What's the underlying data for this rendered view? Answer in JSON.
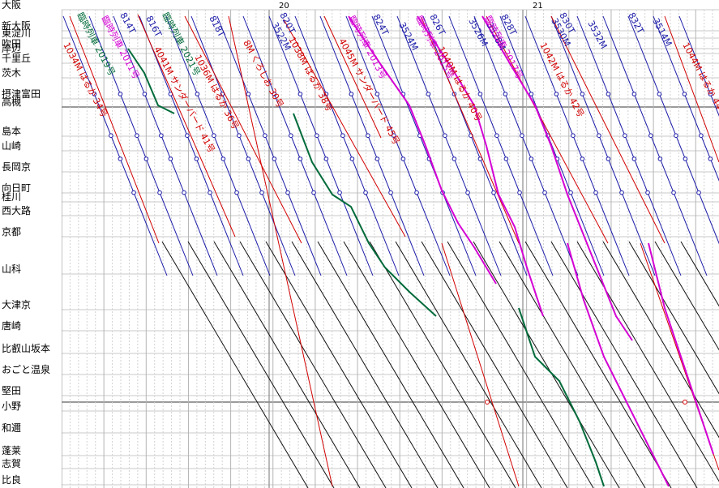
{
  "origin_station": "大阪",
  "hour_labels": [
    {
      "label": "20"
    },
    {
      "label": "21"
    }
  ],
  "stations": [
    {
      "name": "新大阪"
    },
    {
      "name": "東淀川"
    },
    {
      "name": "吹田"
    },
    {
      "name": "岸辺"
    },
    {
      "name": "千里丘"
    },
    {
      "name": "茨木"
    },
    {
      "name": "摂津富田"
    },
    {
      "name": "高槻"
    },
    {
      "name": "島本"
    },
    {
      "name": "山崎"
    },
    {
      "name": "長岡京"
    },
    {
      "name": "向日町"
    },
    {
      "name": "桂川"
    },
    {
      "name": "西大路"
    },
    {
      "name": "京都"
    },
    {
      "name": "山科"
    },
    {
      "name": "大津京"
    },
    {
      "name": "唐崎"
    },
    {
      "name": "比叡山坂本"
    },
    {
      "name": "おごと温泉"
    },
    {
      "name": "堅田"
    },
    {
      "name": "小野"
    },
    {
      "name": "和邇"
    },
    {
      "name": "蓬莱"
    },
    {
      "name": "志賀"
    },
    {
      "name": "比良"
    }
  ],
  "trains": [
    {
      "label": "1034M はるか 34号",
      "color": "#d20000"
    },
    {
      "label": "4041M サンダーバード 41号",
      "color": "#d20000"
    },
    {
      "label": "1036M はるか 36号",
      "color": "#d20000"
    },
    {
      "label": "8M くろしお 30号",
      "color": "#d20000"
    },
    {
      "label": "1038M はるか 38号",
      "color": "#d20000"
    },
    {
      "label": "4045M サンダーバード 45号",
      "color": "#d20000"
    },
    {
      "label": "1040M はるか 40号",
      "color": "#d20000"
    },
    {
      "label": "1042M はるか 42号",
      "color": "#d20000"
    },
    {
      "label": "1044M はるか 44号",
      "color": "#d20000"
    },
    {
      "label": "820T",
      "color": "#1a1aa8"
    },
    {
      "label": "3522M",
      "color": "#1a1aa8"
    },
    {
      "label": "3524M",
      "color": "#1a1aa8"
    },
    {
      "label": "3526M",
      "color": "#1a1aa8"
    },
    {
      "label": "3528M",
      "color": "#1a1aa8"
    },
    {
      "label": "3530M",
      "color": "#1a1aa8"
    },
    {
      "label": "3532M",
      "color": "#1a1aa8"
    },
    {
      "label": "3514M",
      "color": "#1a1aa8"
    },
    {
      "label": "814T",
      "color": "#1a1aa8"
    },
    {
      "label": "816T",
      "color": "#1a1aa8"
    },
    {
      "label": "818T",
      "color": "#1a1aa8"
    },
    {
      "label": "824T",
      "color": "#1a1aa8"
    },
    {
      "label": "826T",
      "color": "#1a1aa8"
    },
    {
      "label": "828T",
      "color": "#1a1aa8"
    },
    {
      "label": "830T",
      "color": "#1a1aa8"
    },
    {
      "label": "832T",
      "color": "#1a1aa8"
    },
    {
      "label": "臨時列車 2011号",
      "color": "#d400d4"
    },
    {
      "label": "臨時列車 2013号",
      "color": "#d400d4"
    },
    {
      "label": "臨時列車 2015号",
      "color": "#d400d4"
    },
    {
      "label": "臨時列車 2017号",
      "color": "#d400d4"
    },
    {
      "label": "臨時列車 2019号",
      "color": "#006b3a"
    },
    {
      "label": "臨時列車 2021号",
      "color": "#006b3a"
    }
  ]
}
